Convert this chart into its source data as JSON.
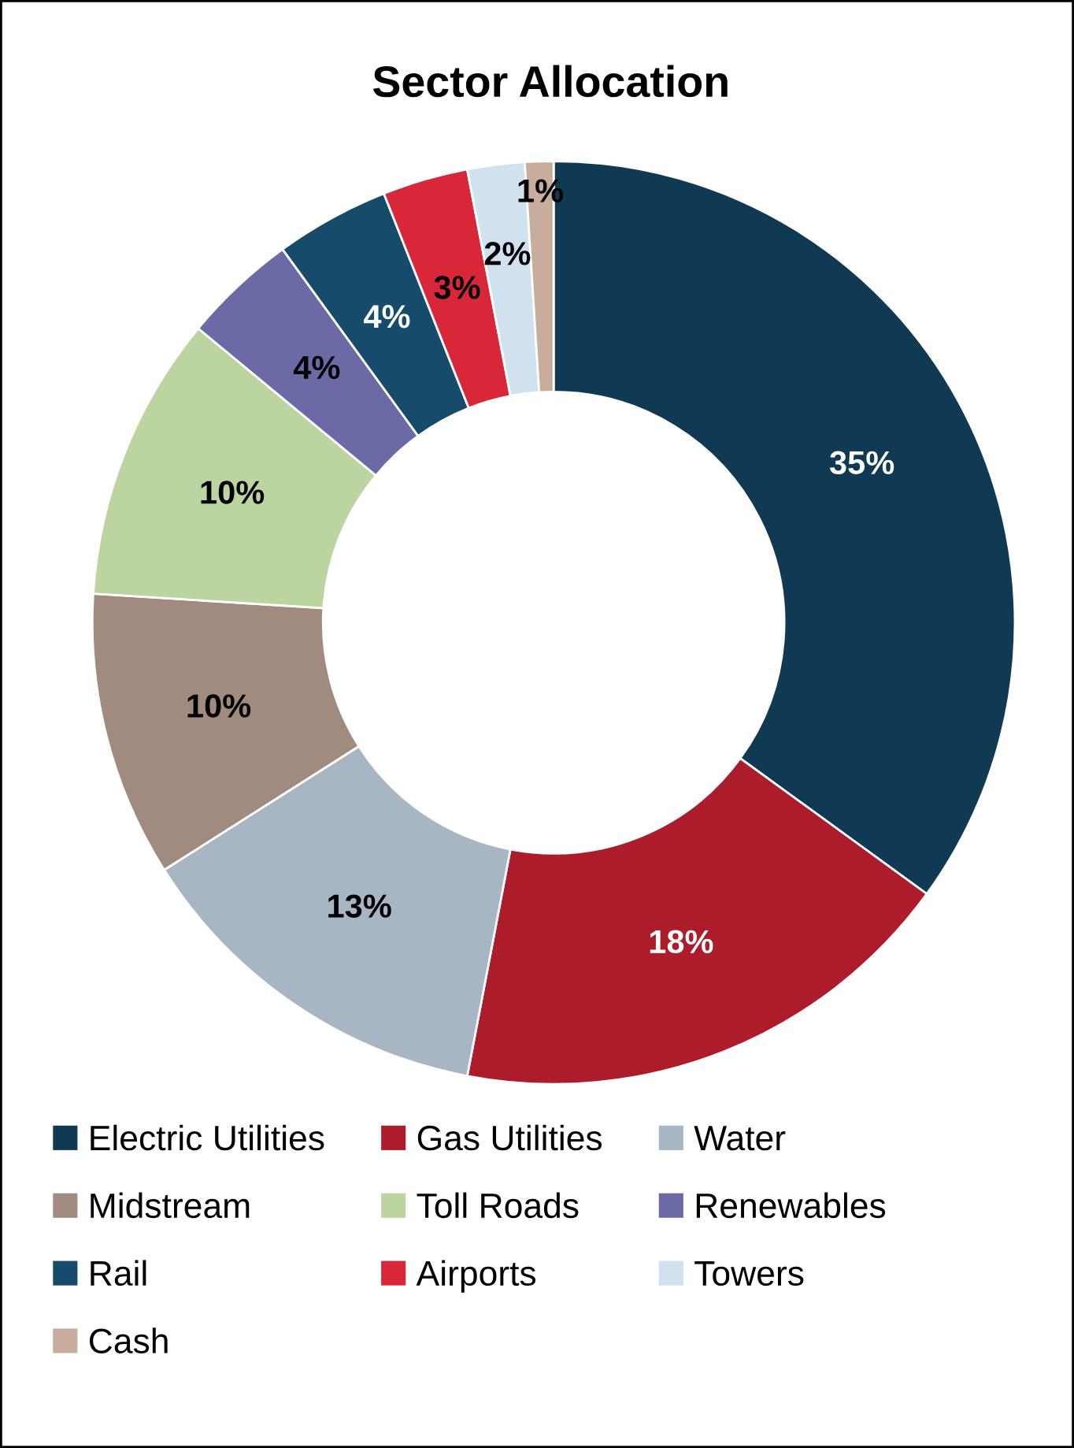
{
  "chart_data": {
    "type": "donut",
    "title": "Sector Allocation",
    "categories": [
      "Electric Utilities",
      "Gas Utilities",
      "Water",
      "Midstream",
      "Toll Roads",
      "Renewables",
      "Rail",
      "Airports",
      "Towers",
      "Cash"
    ],
    "values": [
      35,
      18,
      13,
      10,
      10,
      4,
      4,
      3,
      2,
      1
    ],
    "colors": [
      "#103a54",
      "#ac1c2a",
      "#a7b6c2",
      "#a08b7e",
      "#bcd5a0",
      "#6b6aa6",
      "#174b6b",
      "#d9273a",
      "#cfe2ee",
      "#c9ad9c"
    ],
    "value_labels": [
      "35%",
      "18%",
      "13%",
      "10%",
      "10%",
      "4%",
      "4%",
      "3%",
      "2%",
      "1%"
    ],
    "legend": "bottom"
  }
}
